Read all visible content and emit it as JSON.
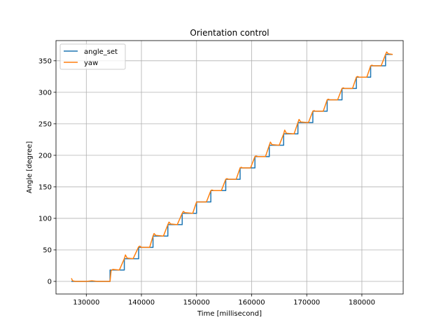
{
  "chart_data": {
    "type": "line",
    "title": "Orientation control",
    "xlabel": "Time [millisecond]",
    "ylabel": "Angle [degree]",
    "xlim": [
      124500,
      187500
    ],
    "ylim": [
      -20,
      382
    ],
    "xticks": [
      130000,
      140000,
      150000,
      160000,
      170000,
      180000
    ],
    "yticks": [
      0,
      50,
      100,
      150,
      200,
      250,
      300,
      350
    ],
    "grid": true,
    "legend_position": "top-left",
    "series": [
      {
        "name": "angle_set",
        "color": "#1f77b4",
        "x": [
          127300,
          134300,
          134300,
          136900,
          136900,
          139500,
          139500,
          142100,
          142100,
          144800,
          144800,
          147400,
          147400,
          150000,
          150000,
          152600,
          152600,
          155300,
          155300,
          157900,
          157900,
          160600,
          160600,
          163200,
          163200,
          165800,
          165800,
          168400,
          168400,
          171100,
          171100,
          173700,
          173700,
          176400,
          176400,
          179000,
          179000,
          181600,
          181600,
          184300,
          184300,
          185600
        ],
        "y": [
          0,
          0,
          18,
          18,
          36,
          36,
          54,
          54,
          72,
          72,
          90,
          90,
          108,
          108,
          126,
          126,
          144,
          144,
          162,
          162,
          180,
          180,
          198,
          198,
          216,
          216,
          234,
          234,
          252,
          252,
          270,
          270,
          288,
          288,
          306,
          306,
          324,
          324,
          342,
          342,
          360,
          360
        ]
      },
      {
        "name": "yaw",
        "color": "#ff7f0e",
        "x": [
          127300,
          127500,
          128000,
          129000,
          130000,
          131000,
          132000,
          133000,
          134300,
          134500,
          134800,
          136000,
          136900,
          137100,
          137400,
          138500,
          139500,
          139700,
          140000,
          141500,
          142100,
          142300,
          142600,
          144000,
          144800,
          145000,
          145300,
          146500,
          147400,
          147600,
          147900,
          149300,
          150000,
          150200,
          150500,
          151800,
          152600,
          152800,
          153100,
          154500,
          155300,
          155500,
          155800,
          157200,
          157900,
          158100,
          158400,
          159800,
          160600,
          160800,
          161100,
          162500,
          163200,
          163400,
          163700,
          165000,
          165800,
          166000,
          166300,
          167700,
          168400,
          168600,
          168900,
          170300,
          171100,
          171300,
          171600,
          173000,
          173700,
          173900,
          174200,
          175600,
          176400,
          176600,
          176900,
          178300,
          179000,
          179200,
          179500,
          180900,
          181600,
          181800,
          182100,
          183500,
          184300,
          184500,
          184800,
          185600
        ],
        "y": [
          5,
          1,
          0,
          0,
          0,
          1,
          0,
          0,
          0,
          17,
          19,
          18,
          36,
          42,
          37,
          36,
          55,
          56,
          54,
          54,
          72,
          76,
          73,
          72,
          90,
          94,
          91,
          90,
          108,
          111,
          109,
          108,
          126,
          126,
          126,
          126,
          144,
          145,
          144,
          144,
          162,
          163,
          162,
          162,
          180,
          181,
          180,
          180,
          198,
          199,
          198,
          198,
          216,
          221,
          217,
          216,
          234,
          240,
          235,
          234,
          252,
          257,
          253,
          252,
          270,
          271,
          270,
          270,
          288,
          289,
          288,
          288,
          306,
          307,
          306,
          306,
          324,
          325,
          324,
          324,
          342,
          343,
          342,
          342,
          360,
          364,
          361,
          360
        ]
      }
    ]
  }
}
